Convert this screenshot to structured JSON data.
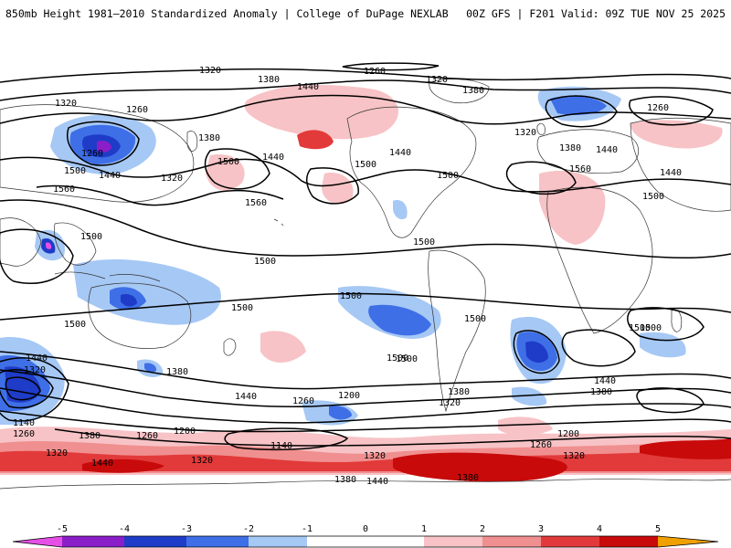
{
  "header": {
    "title_left": "850mb Height 1981–2010 Standardized Anomaly | College of DuPage NEXLAB",
    "title_right": "00Z GFS | F201 Valid: 09Z TUE NOV 25 2025"
  },
  "colors": {
    "neg5": "#e64fe6",
    "neg4": "#8a1ec8",
    "neg3": "#1e3cc8",
    "neg2": "#3f6fe6",
    "neg1": "#a6c8f5",
    "zero": "#ffffff",
    "pos1": "#f7c3c6",
    "pos2": "#f08f8f",
    "pos3": "#e23a3a",
    "pos4": "#c80a0a",
    "pos5": "#f0a000"
  },
  "contour_labels": [
    "1320",
    "1260",
    "1380",
    "1440",
    "1260",
    "1320",
    "1320",
    "1380",
    "1260",
    "1320",
    "1380",
    "1440",
    "1440",
    "1260",
    "1380",
    "1500",
    "1500",
    "1440",
    "1320",
    "1500",
    "1440",
    "1500",
    "1560",
    "1560",
    "1560",
    "1500",
    "1500",
    "1440",
    "1500",
    "1500",
    "1500",
    "1500",
    "1500",
    "1500",
    "1500",
    "1500",
    "1440",
    "1320",
    "1380",
    "1440",
    "1260",
    "1200",
    "1380",
    "1320",
    "1140",
    "1260",
    "1380",
    "1320",
    "1200",
    "1260",
    "1320",
    "1440",
    "1380",
    "1320",
    "1440",
    "1380",
    "1320",
    "1200",
    "1260",
    "1140",
    "1380",
    "1440",
    "1500",
    "1500"
  ],
  "colorbar": {
    "ticks": [
      "-5",
      "-4",
      "-3",
      "-2",
      "-1",
      "0",
      "1",
      "2",
      "3",
      "4",
      "5"
    ]
  }
}
